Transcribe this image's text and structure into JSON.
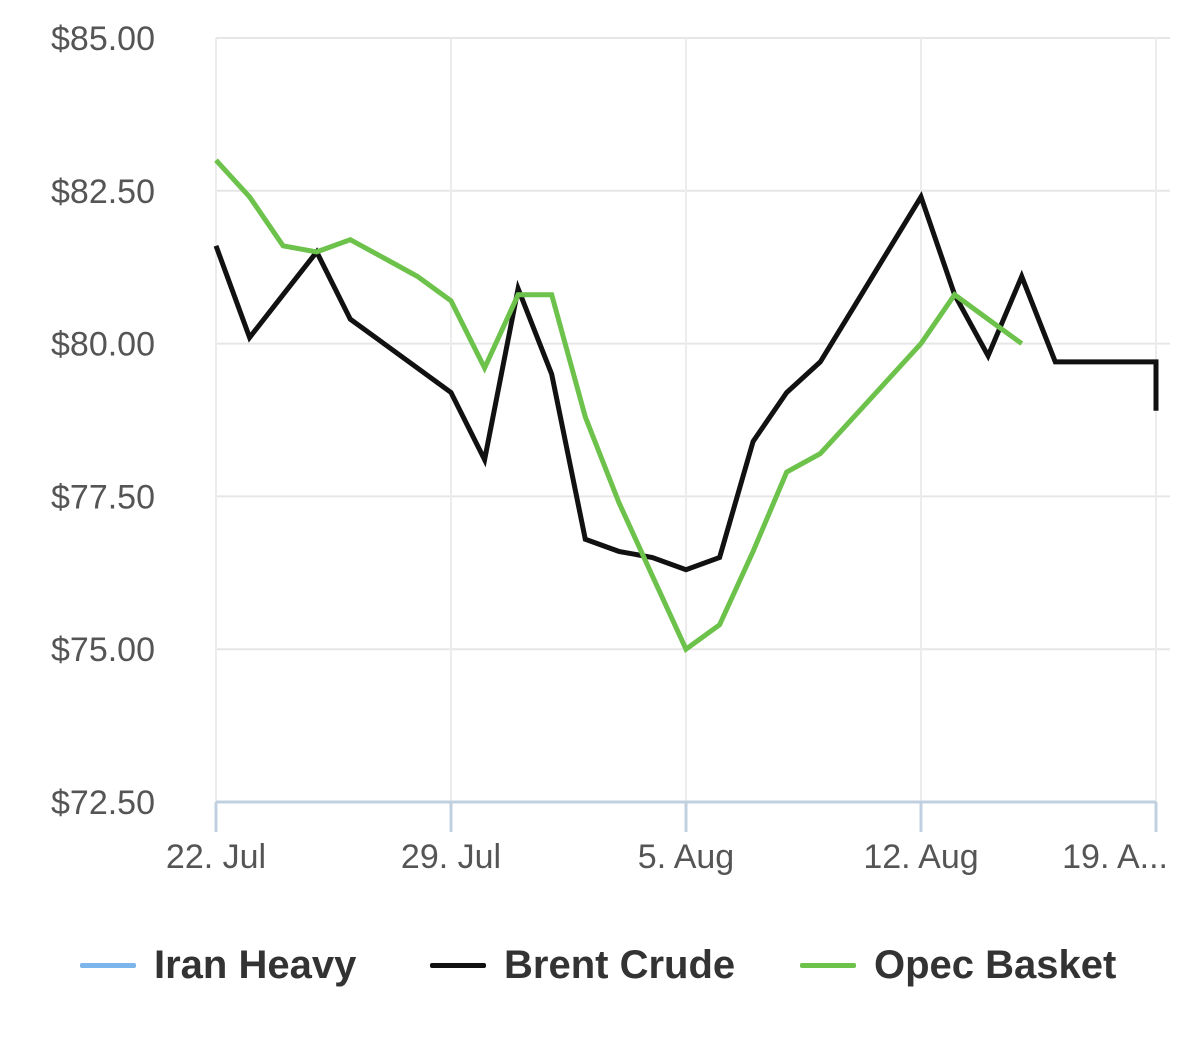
{
  "chart_data": {
    "type": "line",
    "ylim": [
      72.5,
      85.0
    ],
    "y_ticks": [
      "$85.00",
      "$82.50",
      "$80.00",
      "$77.50",
      "$75.00",
      "$72.50"
    ],
    "y_tick_values": [
      85.0,
      82.5,
      80.0,
      77.5,
      75.0,
      72.5
    ],
    "x_ticks": [
      "22. Jul",
      "29. Jul",
      "5. Aug",
      "12. Aug",
      "19. A..."
    ],
    "x_tick_days": [
      0,
      7,
      14,
      21,
      28
    ],
    "xlim_days": [
      0,
      28
    ],
    "grid": true,
    "legend_placement": "bottom",
    "series": [
      {
        "name": "Iran Heavy",
        "color": "#7cb5ec",
        "points": []
      },
      {
        "name": "Brent Crude",
        "color": "#111111",
        "points": [
          [
            0,
            81.6
          ],
          [
            1,
            80.1
          ],
          [
            2,
            80.8
          ],
          [
            3,
            81.5
          ],
          [
            4,
            80.4
          ],
          [
            5,
            80.0
          ],
          [
            6,
            79.6
          ],
          [
            7,
            79.2
          ],
          [
            8,
            78.1
          ],
          [
            9,
            80.9
          ],
          [
            10,
            79.5
          ],
          [
            11,
            76.8
          ],
          [
            12,
            76.6
          ],
          [
            13,
            76.5
          ],
          [
            14,
            76.3
          ],
          [
            15,
            76.5
          ],
          [
            16,
            78.4
          ],
          [
            17,
            79.2
          ],
          [
            18,
            79.7
          ],
          [
            19,
            80.6
          ],
          [
            20,
            81.5
          ],
          [
            21,
            82.4
          ],
          [
            22,
            80.8
          ],
          [
            23,
            79.8
          ],
          [
            24,
            81.1
          ],
          [
            25,
            79.7
          ],
          [
            26,
            79.7
          ],
          [
            27,
            79.7
          ],
          [
            28,
            79.7
          ],
          [
            28,
            78.9
          ]
        ]
      },
      {
        "name": "Opec Basket",
        "color": "#6cc24a",
        "points": [
          [
            0,
            83.0
          ],
          [
            1,
            82.4
          ],
          [
            2,
            81.6
          ],
          [
            3,
            81.5
          ],
          [
            4,
            81.7
          ],
          [
            5,
            81.4
          ],
          [
            6,
            81.1
          ],
          [
            7,
            80.7
          ],
          [
            8,
            79.6
          ],
          [
            9,
            80.8
          ],
          [
            10,
            80.8
          ],
          [
            11,
            78.8
          ],
          [
            12,
            77.4
          ],
          [
            13,
            76.2
          ],
          [
            14,
            75.0
          ],
          [
            15,
            75.4
          ],
          [
            16,
            76.6
          ],
          [
            17,
            77.9
          ],
          [
            18,
            78.2
          ],
          [
            19,
            78.8
          ],
          [
            20,
            79.4
          ],
          [
            21,
            80.0
          ],
          [
            22,
            80.8
          ],
          [
            23,
            80.4
          ],
          [
            24,
            80.0
          ]
        ]
      }
    ]
  }
}
